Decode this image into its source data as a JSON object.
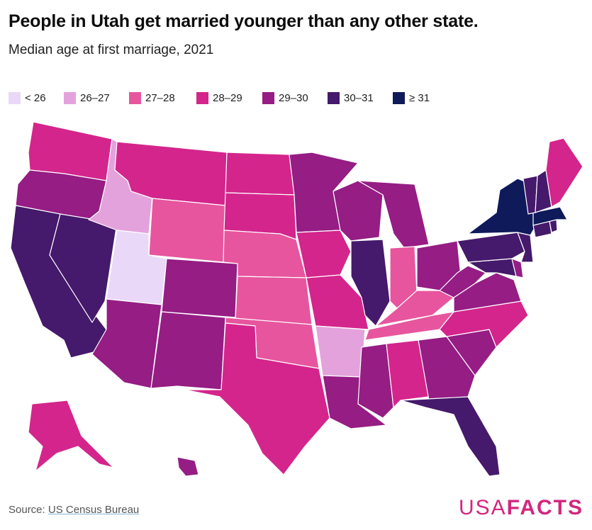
{
  "title": "People in Utah get married younger than any other state.",
  "subtitle": "Median age at first marriage, 2021",
  "legend": [
    {
      "label": "< 26",
      "color": "#e9d8f7"
    },
    {
      "label": "26–27",
      "color": "#e4a2dc"
    },
    {
      "label": "27–28",
      "color": "#e7559e"
    },
    {
      "label": "28–29",
      "color": "#d4258c"
    },
    {
      "label": "29–30",
      "color": "#951d84"
    },
    {
      "label": "30–31",
      "color": "#45196b"
    },
    {
      "label": "≥ 31",
      "color": "#0e1a5a"
    }
  ],
  "source_prefix": "Source: ",
  "source_link": "US Census Bureau",
  "logo_a": "USA",
  "logo_b": "FACTS",
  "map_data": {
    "states": [
      {
        "id": "WA",
        "bin": 3
      },
      {
        "id": "OR",
        "bin": 4
      },
      {
        "id": "CA",
        "bin": 5
      },
      {
        "id": "NV",
        "bin": 5
      },
      {
        "id": "ID",
        "bin": 1
      },
      {
        "id": "MT",
        "bin": 3
      },
      {
        "id": "WY",
        "bin": 2
      },
      {
        "id": "UT",
        "bin": 0
      },
      {
        "id": "AZ",
        "bin": 4
      },
      {
        "id": "CO",
        "bin": 4
      },
      {
        "id": "NM",
        "bin": 4
      },
      {
        "id": "ND",
        "bin": 3
      },
      {
        "id": "SD",
        "bin": 3
      },
      {
        "id": "NE",
        "bin": 2
      },
      {
        "id": "KS",
        "bin": 2
      },
      {
        "id": "OK",
        "bin": 2
      },
      {
        "id": "TX",
        "bin": 3
      },
      {
        "id": "MN",
        "bin": 4
      },
      {
        "id": "IA",
        "bin": 3
      },
      {
        "id": "MO",
        "bin": 3
      },
      {
        "id": "AR",
        "bin": 1
      },
      {
        "id": "LA",
        "bin": 4
      },
      {
        "id": "WI",
        "bin": 4
      },
      {
        "id": "IL",
        "bin": 5
      },
      {
        "id": "MI",
        "bin": 4
      },
      {
        "id": "IN",
        "bin": 2
      },
      {
        "id": "OH",
        "bin": 4
      },
      {
        "id": "KY",
        "bin": 2
      },
      {
        "id": "TN",
        "bin": 2
      },
      {
        "id": "MS",
        "bin": 4
      },
      {
        "id": "AL",
        "bin": 3
      },
      {
        "id": "GA",
        "bin": 4
      },
      {
        "id": "FL",
        "bin": 5
      },
      {
        "id": "SC",
        "bin": 4
      },
      {
        "id": "NC",
        "bin": 3
      },
      {
        "id": "VA",
        "bin": 4
      },
      {
        "id": "WV",
        "bin": 4
      },
      {
        "id": "MD",
        "bin": 5
      },
      {
        "id": "DE",
        "bin": 4
      },
      {
        "id": "PA",
        "bin": 5
      },
      {
        "id": "NJ",
        "bin": 5
      },
      {
        "id": "NY",
        "bin": 6
      },
      {
        "id": "CT",
        "bin": 5
      },
      {
        "id": "RI",
        "bin": 5
      },
      {
        "id": "MA",
        "bin": 6
      },
      {
        "id": "VT",
        "bin": 5
      },
      {
        "id": "NH",
        "bin": 5
      },
      {
        "id": "ME",
        "bin": 3
      },
      {
        "id": "AK",
        "bin": 3
      },
      {
        "id": "HI",
        "bin": 4
      }
    ]
  }
}
